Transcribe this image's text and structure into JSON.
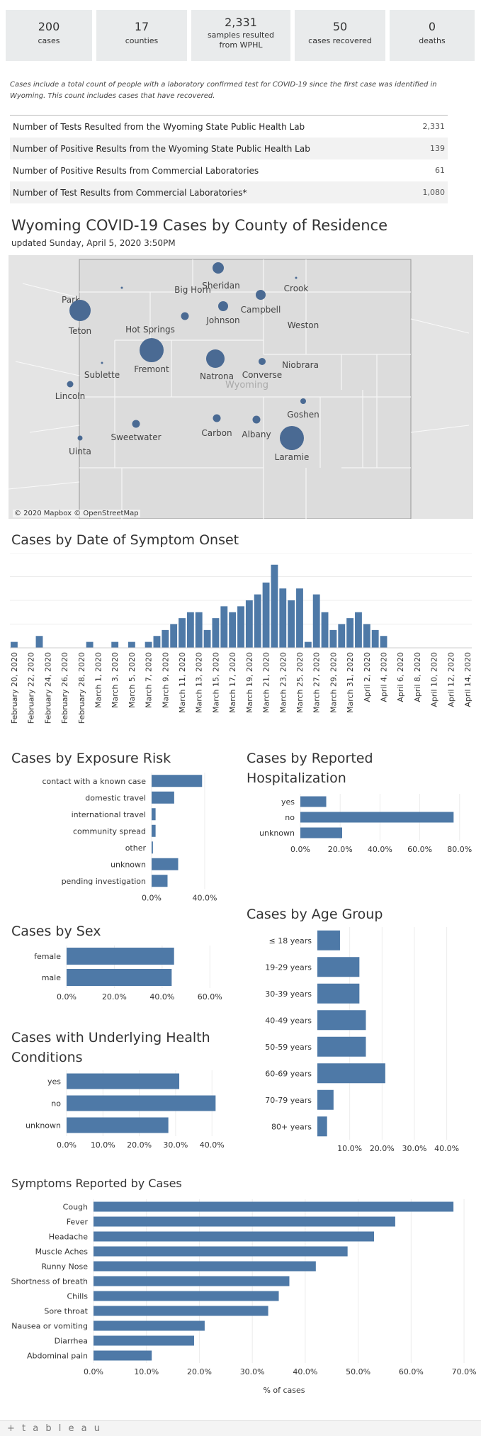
{
  "stats": [
    {
      "value": "200",
      "label": "cases"
    },
    {
      "value": "17",
      "label": "counties"
    },
    {
      "value": "2,331",
      "label": "samples resulted from WPHL"
    },
    {
      "value": "50",
      "label": "cases recovered"
    },
    {
      "value": "0",
      "label": "deaths"
    }
  ],
  "note": "Cases include a total count of people with a laboratory confirmed test for COVID-19 since the first case was identified in Wyoming. This count includes cases that have recovered.",
  "tests": [
    {
      "label": "Number of Tests Resulted from the Wyoming State Public Health Lab",
      "value": "2,331"
    },
    {
      "label": "Number of Positive Results from the Wyoming State Public Health Lab",
      "value": "139"
    },
    {
      "label": "Number of Positive Results from Commercial Laboratories",
      "value": "61"
    },
    {
      "label": "Number of Test Results from Commercial Laboratories*",
      "value": "1,080"
    }
  ],
  "map": {
    "title": "Wyoming COVID-19 Cases by County of Residence",
    "updated": "updated Sunday, April 5, 2020 3:50PM",
    "watermark": "Wyoming",
    "copyright": "© 2020 Mapbox © OpenStreetMap",
    "counties": [
      "Park",
      "Big Horn",
      "Sheridan",
      "Crook",
      "Teton",
      "Hot Springs",
      "Johnson",
      "Campbell",
      "Weston",
      "Fremont",
      "Natrona",
      "Converse",
      "Niobrara",
      "Sublette",
      "Lincoln",
      "Sweetwater",
      "Carbon",
      "Albany",
      "Goshen",
      "Laramie",
      "Uinta"
    ]
  },
  "chart_data": [
    {
      "type": "bar",
      "title": "Cases by Date of Symptom Onset",
      "x_tick_labels": [
        "February 20, 2020",
        "February 22, 2020",
        "February 24, 2020",
        "February 26, 2020",
        "February 28, 2020",
        "March 1, 2020",
        "March 3, 2020",
        "March 5, 2020",
        "March 7, 2020",
        "March 9, 2020",
        "March 11, 2020",
        "March 13, 2020",
        "March 15, 2020",
        "March 17, 2020",
        "March 19, 2020",
        "March 21, 2020",
        "March 23, 2020",
        "March 25, 2020",
        "March 27, 2020",
        "March 29, 2020",
        "March 31, 2020",
        "April 2, 2020",
        "April 4, 2020",
        "April 6, 2020",
        "April 8, 2020",
        "April 10, 2020",
        "April 12, 2020",
        "April 14, 2020"
      ],
      "days_from_feb20": [
        0,
        3,
        9,
        12,
        14,
        16,
        17,
        18,
        19,
        20,
        21,
        22,
        23,
        24,
        25,
        26,
        27,
        28,
        29,
        30,
        31,
        32,
        33,
        34,
        35,
        36,
        37,
        38,
        39,
        40,
        41,
        42,
        43,
        44
      ],
      "values": [
        1,
        2,
        1,
        1,
        1,
        1,
        2,
        3,
        4,
        5,
        6,
        6,
        3,
        5,
        7,
        6,
        7,
        8,
        9,
        11,
        14,
        10,
        8,
        10,
        1,
        9,
        6,
        3,
        4,
        5,
        6,
        4,
        3,
        2
      ],
      "ylim": [
        0,
        16
      ]
    },
    {
      "type": "bar",
      "orientation": "horizontal",
      "title": "Cases by Exposure Risk",
      "categories": [
        "contact with a known case",
        "domestic travel",
        "international travel",
        "community spread",
        "other",
        "unknown",
        "pending investigation"
      ],
      "values": [
        38,
        17,
        3,
        3,
        1,
        20,
        12
      ],
      "x_ticks": [
        "0.0%",
        "40.0%"
      ],
      "xlim": [
        0,
        64
      ]
    },
    {
      "type": "bar",
      "orientation": "horizontal",
      "title": "Cases by Reported Hospitalization",
      "categories": [
        "yes",
        "no",
        "unknown"
      ],
      "values": [
        13,
        77,
        21
      ],
      "x_ticks": [
        "0.0%",
        "20.0%",
        "40.0%",
        "60.0%",
        "80.0%"
      ],
      "xlim": [
        0,
        84
      ]
    },
    {
      "type": "bar",
      "orientation": "horizontal",
      "title": "Cases by Sex",
      "categories": [
        "female",
        "male"
      ],
      "values": [
        45,
        44
      ],
      "x_ticks": [
        "0.0%",
        "20.0%",
        "40.0%",
        "60.0%"
      ],
      "xlim": [
        0,
        70
      ]
    },
    {
      "type": "bar",
      "orientation": "horizontal",
      "title": "Cases by Age Group",
      "categories": [
        "≤ 18 years",
        "19-29 years",
        "30-39 years",
        "40-49 years",
        "50-59 years",
        "60-69 years",
        "70-79 years",
        "80+ years"
      ],
      "values": [
        7,
        13,
        13,
        15,
        15,
        21,
        5,
        3
      ],
      "x_ticks": [
        "10.0%",
        "20.0%",
        "30.0%",
        "40.0%"
      ],
      "xlim": [
        0,
        46
      ]
    },
    {
      "type": "bar",
      "orientation": "horizontal",
      "title": "Cases with Underlying Health Conditions",
      "categories": [
        "yes",
        "no",
        "unknown"
      ],
      "values": [
        31,
        41,
        28
      ],
      "x_ticks": [
        "0.0%",
        "10.0%",
        "20.0%",
        "30.0%",
        "40.0%"
      ],
      "xlim": [
        0,
        46
      ]
    },
    {
      "type": "bar",
      "orientation": "horizontal",
      "title": "Symptoms Reported by Cases",
      "xlabel": "% of cases",
      "categories": [
        "Cough",
        "Fever",
        "Headache",
        "Muscle Aches",
        "Runny Nose",
        "Shortness of breath",
        "Chills",
        "Sore throat",
        "Nausea or vomiting",
        "Diarrhea",
        "Abdominal pain"
      ],
      "values": [
        68,
        57,
        53,
        48,
        42,
        37,
        35,
        33,
        21,
        19,
        11
      ],
      "x_ticks": [
        "0.0%",
        "10.0%",
        "20.0%",
        "30.0%",
        "40.0%",
        "50.0%",
        "60.0%",
        "70.0%"
      ],
      "xlim": [
        0,
        72
      ]
    }
  ],
  "footer": {
    "logo": "+ t a b l e a u"
  },
  "colors": {
    "bar": "#4e79a7",
    "dot": "#4a6a93",
    "grid": "#e6e6e6"
  }
}
